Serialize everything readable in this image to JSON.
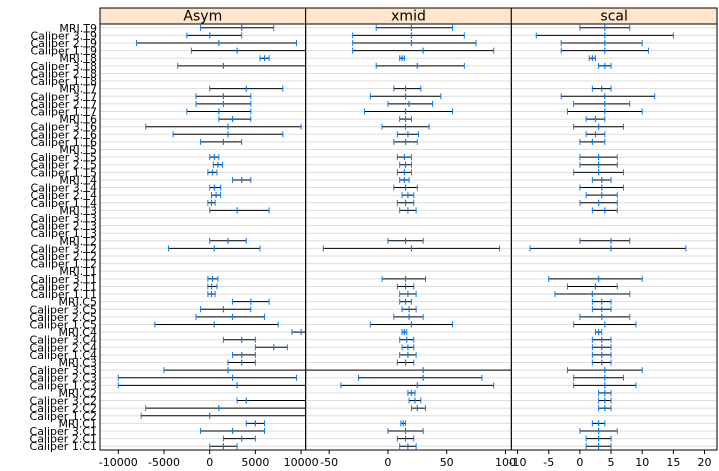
{
  "chart_data": {
    "type": "dotplot-intervals",
    "rows": [
      "Caliper 1.C1",
      "Caliper 2.C1",
      "Caliper 3.C1",
      "MRI.C1",
      "Caliper 1.C2",
      "Caliper 2.C2",
      "Caliper 3.C2",
      "MRI.C2",
      "Caliper 1.C3",
      "Caliper 2.C3",
      "Caliper 3.C3",
      "MRI.C3",
      "Caliper 1.C4",
      "Caliper 2.C4",
      "Caliper 3.C4",
      "MRI.C4",
      "Caliper 1.C5",
      "Caliper 2.C5",
      "Caliper 3.C5",
      "MRI.C5",
      "Caliper 1.T1",
      "Caliper 2.T1",
      "Caliper 3.T1",
      "MRI.T1",
      "Caliper 1.T2",
      "Caliper 2.T2",
      "Caliper 3.T2",
      "MRI.T2",
      "Caliper 1.T3",
      "Caliper 2.T3",
      "Caliper 3.T3",
      "MRI.T3",
      "Caliper 1.T4",
      "Caliper 2.T4",
      "Caliper 3.T4",
      "MRI.T4",
      "Caliper 1.T5",
      "Caliper 2.T5",
      "Caliper 3.T5",
      "MRI.T5",
      "Caliper 1.T6",
      "Caliper 2.T6",
      "Caliper 3.T6",
      "MRI.T6",
      "Caliper 1.T7",
      "Caliper 2.T7",
      "Caliper 3.T7",
      "MRI.T7",
      "Caliper 1.T8",
      "Caliper 2.T8",
      "Caliper 3.T8",
      "MRI.T8",
      "Caliper 1.T9",
      "Caliper 2.T9",
      "Caliper 3.T9",
      "MRI.T9"
    ],
    "panels": [
      {
        "title": "Asym",
        "xlim": [
          -12000,
          10500
        ],
        "ticks": [
          -10000,
          -5000,
          0,
          5000,
          10000
        ],
        "tick_labels": [
          "-10000",
          "-5000",
          "0",
          "5000",
          "10000"
        ],
        "intervals": [
          [
            0,
            1500,
            3000
          ],
          [
            1500,
            3500,
            5000
          ],
          [
            -1000,
            2500,
            6000
          ],
          [
            4000,
            5000,
            6000
          ],
          [
            -7500,
            0,
            15000
          ],
          [
            -7000,
            1000,
            15000
          ],
          [
            3000,
            4000,
            15000
          ],
          [
            null,
            null,
            null
          ],
          [
            -10000,
            3000,
            15000
          ],
          [
            -10000,
            2500,
            9500
          ],
          [
            -5000,
            2000,
            15000
          ],
          [
            2000,
            3500,
            5000
          ],
          [
            2500,
            3500,
            5000
          ],
          [
            5000,
            7000,
            8500
          ],
          [
            1500,
            3500,
            5000
          ],
          [
            9000,
            10000,
            11000
          ],
          [
            -6000,
            500,
            7500
          ],
          [
            -1500,
            2500,
            6000
          ],
          [
            -1000,
            1500,
            4500
          ],
          [
            2500,
            4500,
            6500
          ],
          [
            -200,
            200,
            600
          ],
          [
            -200,
            200,
            800
          ],
          [
            -200,
            300,
            900
          ],
          [
            null,
            null,
            null
          ],
          [
            null,
            null,
            null
          ],
          [
            null,
            null,
            null
          ],
          [
            -4500,
            500,
            5500
          ],
          [
            0,
            2000,
            4000
          ],
          [
            null,
            null,
            null
          ],
          [
            null,
            null,
            null
          ],
          [
            null,
            null,
            null
          ],
          [
            0,
            3000,
            6500
          ],
          [
            -200,
            200,
            600
          ],
          [
            200,
            700,
            1200
          ],
          [
            0,
            500,
            1200
          ],
          [
            2500,
            3500,
            4500
          ],
          [
            -200,
            300,
            800
          ],
          [
            400,
            900,
            1400
          ],
          [
            0,
            500,
            1000
          ],
          [
            null,
            null,
            null
          ],
          [
            -1000,
            1500,
            3500
          ],
          [
            -4000,
            2000,
            8000
          ],
          [
            -7000,
            2000,
            10000
          ],
          [
            1000,
            2500,
            4500
          ],
          [
            -2500,
            1000,
            4500
          ],
          [
            -1500,
            1500,
            4500
          ],
          [
            -1500,
            1500,
            4500
          ],
          [
            0,
            4000,
            8000
          ],
          [
            null,
            null,
            null
          ],
          [
            null,
            null,
            null
          ],
          [
            -3500,
            1500,
            15000
          ],
          [
            5500,
            6000,
            6500
          ],
          [
            -2000,
            3000,
            15000
          ],
          [
            -8000,
            1000,
            9500
          ],
          [
            -2500,
            0,
            3500
          ],
          [
            -1000,
            3500,
            7000
          ]
        ]
      },
      {
        "title": "xmid",
        "xlim": [
          -70,
          105
        ],
        "ticks": [
          -50,
          0,
          50,
          100
        ],
        "tick_labels": [
          "-50",
          "0",
          "50",
          "100"
        ],
        "intervals": [
          [
            10,
            17,
            24
          ],
          [
            8,
            15,
            22
          ],
          [
            0,
            15,
            30
          ],
          [
            11,
            13,
            15
          ],
          [
            null,
            null,
            null
          ],
          [
            20,
            25,
            32
          ],
          [
            18,
            23,
            28
          ],
          [
            17,
            20,
            23
          ],
          [
            -40,
            25,
            90
          ],
          [
            -25,
            30,
            80
          ],
          [
            -100,
            30,
            200
          ],
          [
            8,
            15,
            22
          ],
          [
            10,
            17,
            24
          ],
          [
            12,
            17,
            22
          ],
          [
            10,
            16,
            22
          ],
          [
            12,
            14,
            16
          ],
          [
            -15,
            20,
            55
          ],
          [
            5,
            18,
            30
          ],
          [
            12,
            18,
            24
          ],
          [
            10,
            15,
            20
          ],
          [
            10,
            17,
            24
          ],
          [
            8,
            15,
            22
          ],
          [
            -5,
            15,
            32
          ],
          [
            null,
            null,
            null
          ],
          [
            null,
            null,
            null
          ],
          [
            null,
            null,
            null
          ],
          [
            -55,
            20,
            95
          ],
          [
            0,
            15,
            30
          ],
          [
            null,
            null,
            null
          ],
          [
            null,
            null,
            null
          ],
          [
            null,
            null,
            null
          ],
          [
            10,
            17,
            24
          ],
          [
            8,
            15,
            22
          ],
          [
            12,
            17,
            22
          ],
          [
            5,
            15,
            25
          ],
          [
            10,
            14,
            18
          ],
          [
            8,
            14,
            20
          ],
          [
            10,
            15,
            20
          ],
          [
            8,
            14,
            20
          ],
          [
            null,
            null,
            null
          ],
          [
            5,
            15,
            25
          ],
          [
            8,
            17,
            26
          ],
          [
            -5,
            15,
            35
          ],
          [
            10,
            15,
            20
          ],
          [
            -20,
            15,
            55
          ],
          [
            0,
            18,
            38
          ],
          [
            -15,
            15,
            45
          ],
          [
            5,
            15,
            28
          ],
          [
            null,
            null,
            null
          ],
          [
            null,
            null,
            null
          ],
          [
            -10,
            25,
            65
          ],
          [
            10,
            12,
            14
          ],
          [
            -30,
            30,
            90
          ],
          [
            -30,
            20,
            75
          ],
          [
            -30,
            20,
            65
          ],
          [
            -10,
            20,
            55
          ]
        ]
      },
      {
        "title": "scal",
        "xlim": [
          -11,
          22
        ],
        "ticks": [
          -10,
          -5,
          0,
          5,
          10,
          15,
          20
        ],
        "tick_labels": [
          "-10",
          "-5",
          "0",
          "5",
          "10",
          "15",
          "20"
        ],
        "intervals": [
          [
            1,
            3,
            5
          ],
          [
            1,
            3,
            5
          ],
          [
            0,
            3,
            6
          ],
          [
            2,
            3,
            4
          ],
          [
            null,
            null,
            null
          ],
          [
            3,
            4,
            5
          ],
          [
            3,
            4,
            5
          ],
          [
            3,
            4,
            5
          ],
          [
            -1,
            4,
            9
          ],
          [
            -1,
            4,
            7
          ],
          [
            -2,
            4,
            10
          ],
          [
            2,
            3.5,
            5
          ],
          [
            2,
            3.5,
            5
          ],
          [
            2,
            3.5,
            5
          ],
          [
            2,
            3.5,
            5
          ],
          [
            2.5,
            3,
            3.5
          ],
          [
            -1,
            4,
            9
          ],
          [
            0,
            3.5,
            8
          ],
          [
            2,
            3.5,
            5
          ],
          [
            2,
            3.5,
            5
          ],
          [
            -4,
            2,
            8
          ],
          [
            -2,
            2.5,
            6
          ],
          [
            -5,
            3,
            10
          ],
          [
            null,
            null,
            null
          ],
          [
            null,
            null,
            null
          ],
          [
            null,
            null,
            null
          ],
          [
            -8,
            5,
            17
          ],
          [
            0,
            5,
            8
          ],
          [
            null,
            null,
            null
          ],
          [
            null,
            null,
            null
          ],
          [
            null,
            null,
            null
          ],
          [
            2,
            4,
            6
          ],
          [
            0,
            3,
            6
          ],
          [
            1,
            3.5,
            6
          ],
          [
            0,
            3.5,
            7
          ],
          [
            2,
            3.5,
            5
          ],
          [
            -1,
            3,
            7
          ],
          [
            0,
            3,
            6
          ],
          [
            0,
            3,
            6
          ],
          [
            null,
            null,
            null
          ],
          [
            0,
            2,
            4
          ],
          [
            1,
            2.5,
            4
          ],
          [
            -1,
            3,
            7
          ],
          [
            1,
            2.5,
            4
          ],
          [
            -2,
            4,
            10
          ],
          [
            -1,
            4,
            8
          ],
          [
            -3,
            4,
            12
          ],
          [
            2,
            3.5,
            5
          ],
          [
            null,
            null,
            null
          ],
          [
            null,
            null,
            null
          ],
          [
            3,
            4,
            5
          ],
          [
            1.5,
            2,
            2.5
          ],
          [
            -3,
            4,
            11
          ],
          [
            -3,
            4,
            10
          ],
          [
            -7,
            4,
            15
          ],
          [
            0,
            4,
            8
          ]
        ]
      }
    ],
    "grid": true,
    "colors": {
      "strip": "#ffe5cc",
      "interval": "#000000",
      "point": "#0080ff",
      "grid": "#dddddd"
    }
  }
}
